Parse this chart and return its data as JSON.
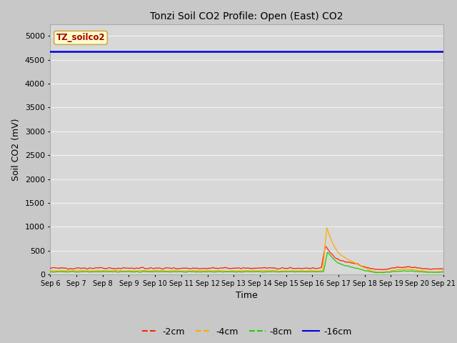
{
  "title": "Tonzi Soil CO2 Profile: Open (East) CO2",
  "xlabel": "Time",
  "ylabel": "Soil CO2 (mV)",
  "ylim": [
    0,
    5250
  ],
  "yticks": [
    0,
    500,
    1000,
    1500,
    2000,
    2500,
    3000,
    3500,
    4000,
    4500,
    5000
  ],
  "x_tick_labels": [
    "Sep 6",
    "Sep 7",
    "Sep 8",
    "Sep 9",
    "Sep 10",
    "Sep 11",
    "Sep 12",
    "Sep 13",
    "Sep 14",
    "Sep 15",
    "Sep 16",
    "Sep 17",
    "Sep 18",
    "Sep 19",
    "Sep 20",
    "Sep 21"
  ],
  "fig_bg_color": "#c8c8c8",
  "axes_bg_color": "#d8d8d8",
  "grid_color": "#f0f0f0",
  "legend_label": "TZ_soilco2",
  "legend_bg": "#ffffcc",
  "legend_edge": "#ccaa55",
  "line_colors": {
    "2cm": "#ff2200",
    "4cm": "#ffaa00",
    "8cm": "#22cc00",
    "16cm": "#0000dd"
  },
  "line_labels": [
    "-2cm",
    "-4cm",
    "-8cm",
    "-16cm"
  ],
  "series_16cm_value": 4670,
  "n_days": 15,
  "spike_day": 10.5
}
